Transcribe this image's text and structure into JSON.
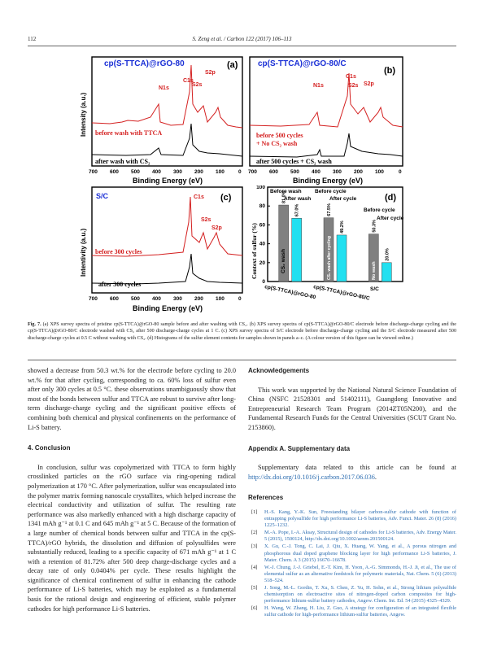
{
  "header": {
    "page_number": "112",
    "journal": "S. Zeng et al. / Carbon 122 (2017) 106–113"
  },
  "figure": {
    "panel_a": {
      "title": "cp(S-TTCA)@rGO-80",
      "letter": "(a)",
      "labels": [
        "S2p",
        "C1s",
        "S2s",
        "N1s"
      ],
      "trace_top": "before wash with TTCA",
      "trace_bottom": "after wash with CS₂",
      "ylabel": "Intensity (a.u.)",
      "xlabel": "Binding Energy (eV)",
      "xticks": [
        "700",
        "600",
        "500",
        "400",
        "300",
        "200",
        "100",
        "0"
      ],
      "title_color": "#1a2fd6",
      "label_color": "#d42020"
    },
    "panel_b": {
      "title": "cp(S-TTCA)@rGO-80/C",
      "letter": "(b)",
      "labels": [
        "C1s",
        "N1s",
        "S2s",
        "S2p"
      ],
      "trace_top_1": "before 500 cycles",
      "trace_top_2": "+ No CS₂ wash",
      "trace_bottom": "after 500 cycles + CS₂ wash",
      "ylabel": "Intensity (a.u.)",
      "xlabel": "Binding Energy (eV)",
      "xticks": [
        "700",
        "600",
        "500",
        "400",
        "300",
        "200",
        "100",
        "0"
      ]
    },
    "panel_c": {
      "title": "S/C",
      "letter": "(c)",
      "labels": [
        "C1s",
        "S2s",
        "S2p"
      ],
      "trace_top": "before 300 cycles",
      "trace_bottom": "after 300 cycles",
      "ylabel": "Intentivity (a.u.)",
      "xlabel": "Binding Energy (eV)",
      "xticks": [
        "700",
        "600",
        "500",
        "400",
        "300",
        "200",
        "100",
        "0"
      ]
    },
    "panel_d": {
      "letter": "(d)",
      "ylabel": "Context of sulfur (%)",
      "yticks": [
        "0",
        "20",
        "40",
        "60",
        "80",
        "100"
      ],
      "legend_before_wash": "Before wash",
      "legend_after_wash": "After wash",
      "legend_before_cycle": "Before cycle",
      "legend_after_cycle": "After cycle",
      "legend_before_cycle_2": "Before cycle",
      "legend_after_cycle_2": "After cycle",
      "bar_text_cs2": "CS₂ wash",
      "bar_text_cs2_after": "CS₂ wash after cycling",
      "bar_text_nowash": "No wash",
      "xtick_1": "cp(S-TTCA)@rGO-80",
      "xtick_2": "cp(S-TTCA)@rGO-80/C",
      "xtick_3": "S/C"
    }
  },
  "chart_data": {
    "type": "bar",
    "ylabel": "Context of sulfur (%)",
    "ylim": [
      0,
      100
    ],
    "categories": [
      "cp(S-TTCA)@rGO-80",
      "cp(S-TTCA)@rGO-80/C",
      "S/C"
    ],
    "series": [
      {
        "name": "Before",
        "values": [
          81.0,
          67.5,
          50.3
        ]
      },
      {
        "name": "After",
        "values": [
          67.0,
          49.2,
          20.0
        ]
      }
    ],
    "value_labels": [
      [
        "81.0%",
        "67.0%"
      ],
      [
        "67.5%",
        "49.2%"
      ],
      [
        "50.3%",
        "20.0%"
      ]
    ],
    "colors": {
      "before": "#808080",
      "after": "#22e0f0"
    }
  },
  "caption": {
    "label": "Fig. 7.",
    "text": "(a) XPS survey spectra of pristine cp(S-TTCA)@rGO-80 sample before and after washing with CS₂. (b) XPS survey spectra of cp(S-TTCA)@rGO-80/C electrode before discharge-charge cycling and the cp(S-TTCA)@rGO-80/C electrode washed with CS₂ after 500 discharge-charge cycles at 1 C. (c) XPS survey spectra of S/C electrode before discharge-charge cycling and the S/C electrode measured after 500 discharge-charge cycles at 0.5 C without washing with CS₂. (d) Histograms of the sulfur element contents for samples shown in panels a–c. (A colour version of this figure can be viewed online.)"
  },
  "left_column": {
    "para1": "showed a decrease from 50.3 wt.% for the electrode before cycling to 20.0 wt.% for that after cycling, corresponding to ca. 60% loss of sulfur even after only 300 cycles at 0.5 °C. these observations unambiguously show that most of the bonds between sulfur and TTCA are robust to survive after long-term discharge-charge cycling and the significant positive effects of combining both chemical and physical confinements on the performance of Li-S battery.",
    "conclusion_heading": "4. Conclusion",
    "para2": "In conclusion, sulfur was copolymerized with TTCA to form highly crosslinked particles on the rGO surface via ring-opening radical polymerization at 170 °C. After polymerization, sulfur was encapsulated into the polymer matrix forming nanoscale crystallites, which helped increase the electrical conductivity and utilization of sulfur. The resulting rate performance was also markedly enhanced with a high discharge capacity of 1341 mAh g⁻¹ at 0.1 C and 645 mAh g⁻¹ at 5 C. Because of the formation of a large number of chemical bonds between sulfur and TTCA in the cp(S-TTCA)/rGO hybrids, the dissolution and diffusion of polysulfides were substantially reduced, leading to a specific capacity of 671 mAh g⁻¹ at 1 C with a retention of 81.72% after 500 deep charge-discharge cycles and a decay rate of only 0.0404% per cycle. These results highlight the significance of chemical confinement of sulfur in enhancing the cathode performance of Li-S batteries, which may be exploited as a fundamental basis for the rational design and engineering of efficient, stable polymer cathodes for high performance Li-S batteries."
  },
  "right_column": {
    "ack_heading": "Acknowledgements",
    "ack_text": "This work was supported by the National Natural Science Foundation of China (NSFC 21528301 and 51402111), Guangdong Innovative and Entrepreneurial Research Team Program (2014ZT05N200), and the Fundamental Research Funds for the Central Universities (SCUT Grant No. 2153860).",
    "appendix_heading": "Appendix A.  Supplementary data",
    "appendix_text": "Supplementary data related to this article can be found at ",
    "appendix_link": "http://dx.doi.org/10.1016/j.carbon.2017.06.036",
    "appendix_end": ".",
    "refs_heading": "References",
    "refs": [
      {
        "n": "[1]",
        "t": "H.-S. Kang, Y.-K. Sun, Freestanding bilayer carbon-sulfur cathode with function of entrapping polysulfide for high performance Li-S batteries, Adv. Funct. Mater. 26 (8) (2016) 1225–1232."
      },
      {
        "n": "[2]",
        "t": "M.-A. Pope, I.-A. Aksay, Structural design of cathodes for Li-S batteries, Adv. Energy Mater. 5 (2015), 1500124, http://dx.doi.org/10.1002/aenm.201500124."
      },
      {
        "n": "[3]",
        "t": "X. Gu, C.-J. Tong, C. Lai, J. Qiu, X. Huang, W. Yang, et al., A porous nitrogen and phosphorous dual doped graphene blocking layer for high performance Li-S batteries, J. Mater. Chem. A 3 (2015) 16670–16678."
      },
      {
        "n": "[4]",
        "t": "W.-J. Chung, J.-J. Griebel, E.-T. Kim, H. Yoon, A.-G. Simmonds, H.-J. Ji, et al., The use of elemental sulfur as an alternative feedstock for polymeric materials, Nat. Chem. 5 (6) (2013) 518–524."
      },
      {
        "n": "[5]",
        "t": "J. Song, M.-L. Gordin, T. Xu, S. Chen, Z. Yu, H. Sohn, et al., Strong lithium polysulfide chemisorption on electroactive sites of nitrogen-doped carbon composites for high-performance lithium-sulfur battery cathodes, Angew. Chem. Int. Ed. 54 (2015) 4325–4329."
      },
      {
        "n": "[6]",
        "t": "H. Wang, W. Zhang, H. Liu, Z. Guo, A strategy for configuration of an integrated flexible sulfur cathode for high-performance lithium-sulfur batteries, Angew."
      }
    ]
  }
}
